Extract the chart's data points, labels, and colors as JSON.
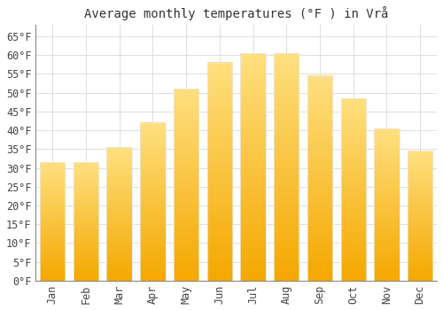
{
  "title": "Average monthly temperatures (°F ) in Vrå",
  "months": [
    "Jan",
    "Feb",
    "Mar",
    "Apr",
    "May",
    "Jun",
    "Jul",
    "Aug",
    "Sep",
    "Oct",
    "Nov",
    "Dec"
  ],
  "values": [
    31.5,
    31.5,
    35.5,
    42.0,
    51.0,
    58.0,
    60.5,
    60.5,
    54.5,
    48.5,
    40.5,
    34.5
  ],
  "bar_color_bottom": "#F5A800",
  "bar_color_top": "#FFE080",
  "bar_edge_color": "#E8E8E8",
  "ylim": [
    0,
    68
  ],
  "yticks": [
    0,
    5,
    10,
    15,
    20,
    25,
    30,
    35,
    40,
    45,
    50,
    55,
    60,
    65
  ],
  "background_color": "#FFFFFF",
  "grid_color": "#DDDDDD",
  "title_fontsize": 10,
  "tick_fontsize": 8.5,
  "bar_width": 0.75
}
